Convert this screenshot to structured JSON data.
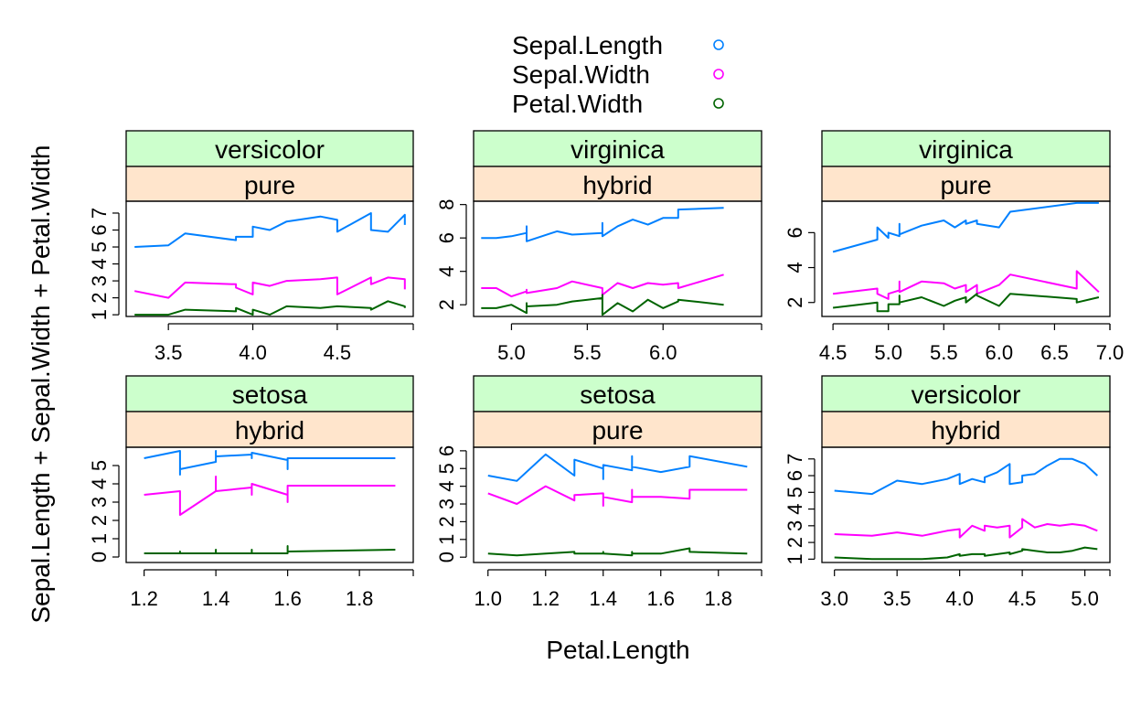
{
  "xlabel": "Petal.Length",
  "ylabel": "Sepal.Length + Sepal.Width + Petal.Width",
  "legend": {
    "placement": "top",
    "entries": [
      {
        "name": "Sepal.Length",
        "color": "#0080FF"
      },
      {
        "name": "Sepal.Width",
        "color": "#FF00FF"
      },
      {
        "name": "Petal.Width",
        "color": "#006400"
      }
    ]
  },
  "strip_colors": {
    "outer": "#CCFFCC",
    "inner": "#FFE5CC"
  },
  "chart_data": [
    {
      "type": "line",
      "species": "versicolor",
      "group": "pure",
      "xlim": [
        3.25,
        4.95
      ],
      "ylim": [
        0.9,
        7.7
      ],
      "xticks": [
        "3.5",
        "4.0",
        "4.5"
      ],
      "xtick_values": [
        3.5,
        4.0,
        4.5
      ],
      "yticks": [
        "1",
        "2",
        "3",
        "4",
        "5",
        "6",
        "7"
      ],
      "ytick_values": [
        1,
        2,
        3,
        4,
        5,
        6,
        7
      ],
      "x": [
        3.3,
        3.5,
        3.6,
        3.9,
        3.9,
        4.0,
        4.0,
        4.1,
        4.2,
        4.4,
        4.5,
        4.5,
        4.7,
        4.7,
        4.8,
        4.9,
        4.9
      ],
      "series": [
        {
          "name": "Sepal.Length",
          "values": [
            5.0,
            5.1,
            5.8,
            5.4,
            5.6,
            5.6,
            6.2,
            6.0,
            6.5,
            6.8,
            6.6,
            5.9,
            7.0,
            6.0,
            5.9,
            6.9,
            6.3
          ]
        },
        {
          "name": "Sepal.Width",
          "values": [
            2.4,
            2.0,
            2.9,
            2.8,
            2.6,
            2.2,
            2.9,
            2.7,
            3.0,
            3.1,
            3.2,
            2.2,
            3.2,
            2.8,
            3.2,
            3.1,
            2.5
          ]
        },
        {
          "name": "Petal.Width",
          "values": [
            1.0,
            1.0,
            1.3,
            1.2,
            1.4,
            1.0,
            1.3,
            1.0,
            1.5,
            1.4,
            1.5,
            1.5,
            1.4,
            1.3,
            1.8,
            1.5,
            1.4
          ]
        }
      ]
    },
    {
      "type": "line",
      "species": "virginica",
      "group": "hybrid",
      "xlim": [
        4.75,
        6.65
      ],
      "ylim": [
        1.3,
        8.2
      ],
      "xticks": [
        "5.0",
        "5.5",
        "6.0"
      ],
      "xtick_values": [
        5.0,
        5.5,
        6.0
      ],
      "yticks": [
        "2",
        "4",
        "6",
        "8"
      ],
      "ytick_values": [
        2,
        4,
        6,
        8
      ],
      "x": [
        4.8,
        4.9,
        5.0,
        5.1,
        5.1,
        5.1,
        5.3,
        5.4,
        5.6,
        5.6,
        5.6,
        5.7,
        5.8,
        5.9,
        6.0,
        6.1,
        6.1,
        6.4
      ],
      "series": [
        {
          "name": "Sepal.Length",
          "values": [
            6.0,
            6.0,
            6.1,
            6.3,
            6.7,
            5.8,
            6.4,
            6.2,
            6.3,
            6.9,
            6.1,
            6.7,
            7.1,
            6.8,
            7.2,
            7.2,
            7.7,
            7.8
          ]
        },
        {
          "name": "Sepal.Width",
          "values": [
            3.0,
            3.0,
            2.5,
            2.8,
            2.9,
            2.7,
            3.0,
            3.4,
            3.0,
            2.5,
            2.6,
            3.3,
            3.0,
            3.3,
            3.2,
            3.3,
            3.0,
            3.8
          ]
        },
        {
          "name": "Petal.Width",
          "values": [
            1.8,
            1.8,
            2.0,
            1.5,
            2.1,
            1.9,
            2.0,
            2.2,
            2.4,
            2.6,
            1.4,
            2.1,
            1.6,
            2.3,
            1.8,
            2.2,
            2.3,
            2.0
          ]
        }
      ]
    },
    {
      "type": "line",
      "species": "virginica",
      "group": "pure",
      "xlim": [
        4.4,
        7.0
      ],
      "ylim": [
        1.2,
        7.8
      ],
      "xticks": [
        "4.5",
        "5.0",
        "5.5",
        "6.0",
        "6.5",
        "7.0"
      ],
      "xtick_values": [
        4.5,
        5.0,
        5.5,
        6.0,
        6.5,
        7.0
      ],
      "yticks": [
        "2",
        "4",
        "6"
      ],
      "ytick_values": [
        2,
        4,
        6
      ],
      "x": [
        4.5,
        4.9,
        4.9,
        5.0,
        5.0,
        5.1,
        5.1,
        5.1,
        5.3,
        5.5,
        5.6,
        5.7,
        5.7,
        5.8,
        5.8,
        6.0,
        6.1,
        6.7,
        6.7,
        6.9
      ],
      "series": [
        {
          "name": "Sepal.Length",
          "values": [
            4.9,
            5.6,
            6.3,
            5.7,
            6.0,
            5.8,
            6.5,
            5.9,
            6.4,
            6.7,
            6.3,
            6.7,
            6.5,
            6.7,
            6.5,
            6.3,
            7.2,
            7.7,
            7.7,
            7.7
          ]
        },
        {
          "name": "Sepal.Width",
          "values": [
            2.5,
            2.8,
            2.5,
            2.2,
            2.5,
            2.7,
            3.2,
            2.6,
            3.2,
            3.1,
            2.8,
            3.0,
            2.6,
            3.0,
            2.5,
            3.0,
            3.6,
            2.8,
            3.8,
            2.6
          ]
        },
        {
          "name": "Petal.Width",
          "values": [
            1.7,
            2.0,
            1.5,
            1.5,
            1.9,
            1.9,
            2.4,
            2.0,
            2.3,
            1.8,
            2.1,
            2.3,
            2.0,
            2.5,
            2.4,
            1.8,
            2.5,
            2.2,
            2.0,
            2.3
          ]
        }
      ]
    },
    {
      "type": "line",
      "species": "setosa",
      "group": "hybrid",
      "xlim": [
        1.15,
        1.95
      ],
      "ylim": [
        -0.3,
        6.0
      ],
      "xticks": [
        "1.2",
        "1.4",
        "1.6",
        "1.8"
      ],
      "xtick_values": [
        1.2,
        1.4,
        1.6,
        1.8
      ],
      "yticks": [
        "0",
        "1",
        "2",
        "3",
        "4",
        "5"
      ],
      "ytick_values": [
        0,
        1,
        2,
        3,
        4,
        5
      ],
      "x": [
        1.2,
        1.3,
        1.3,
        1.3,
        1.4,
        1.4,
        1.4,
        1.5,
        1.5,
        1.5,
        1.6,
        1.6,
        1.6,
        1.9
      ],
      "series": [
        {
          "name": "Sepal.Length",
          "values": [
            5.4,
            5.8,
            4.5,
            4.8,
            5.2,
            5.8,
            5.5,
            5.6,
            5.4,
            5.7,
            5.3,
            4.8,
            5.4,
            5.4
          ]
        },
        {
          "name": "Sepal.Width",
          "values": [
            3.4,
            3.6,
            3.4,
            2.3,
            3.6,
            4.4,
            3.6,
            3.8,
            3.4,
            4.0,
            3.4,
            3.0,
            3.9,
            3.9
          ]
        },
        {
          "name": "Petal.Width",
          "values": [
            0.2,
            0.2,
            0.3,
            0.2,
            0.2,
            0.4,
            0.2,
            0.2,
            0.4,
            0.2,
            0.2,
            0.6,
            0.3,
            0.4
          ]
        }
      ]
    },
    {
      "type": "line",
      "species": "setosa",
      "group": "pure",
      "xlim": [
        0.95,
        1.95
      ],
      "ylim": [
        -0.3,
        6.2
      ],
      "xticks": [
        "1.0",
        "1.2",
        "1.4",
        "1.6",
        "1.8"
      ],
      "xtick_values": [
        1.0,
        1.2,
        1.4,
        1.6,
        1.8
      ],
      "yticks": [
        "0",
        "1",
        "2",
        "3",
        "4",
        "5",
        "6"
      ],
      "ytick_values": [
        0,
        1,
        2,
        3,
        4,
        5,
        6
      ],
      "x": [
        1.0,
        1.1,
        1.2,
        1.3,
        1.3,
        1.4,
        1.4,
        1.4,
        1.5,
        1.5,
        1.5,
        1.6,
        1.7,
        1.7,
        1.9
      ],
      "series": [
        {
          "name": "Sepal.Length",
          "values": [
            4.6,
            4.3,
            5.8,
            4.6,
            5.5,
            5.0,
            4.4,
            5.2,
            4.9,
            5.7,
            5.1,
            4.8,
            5.1,
            5.7,
            5.1
          ]
        },
        {
          "name": "Sepal.Width",
          "values": [
            3.6,
            3.0,
            4.0,
            3.2,
            3.5,
            3.6,
            2.9,
            3.4,
            3.1,
            3.8,
            3.4,
            3.4,
            3.3,
            3.8,
            3.8
          ]
        },
        {
          "name": "Petal.Width",
          "values": [
            0.2,
            0.1,
            0.2,
            0.3,
            0.2,
            0.2,
            0.3,
            0.2,
            0.1,
            0.3,
            0.2,
            0.2,
            0.5,
            0.3,
            0.2
          ]
        }
      ]
    },
    {
      "type": "line",
      "species": "versicolor",
      "group": "hybrid",
      "xlim": [
        2.9,
        5.2
      ],
      "ylim": [
        0.8,
        7.7
      ],
      "xticks": [
        "3.0",
        "3.5",
        "4.0",
        "4.5",
        "5.0"
      ],
      "xtick_values": [
        3.0,
        3.5,
        4.0,
        4.5,
        5.0
      ],
      "yticks": [
        "1",
        "2",
        "3",
        "4",
        "5",
        "6",
        "7"
      ],
      "ytick_values": [
        1,
        2,
        3,
        4,
        5,
        6,
        7
      ],
      "x": [
        3.0,
        3.3,
        3.5,
        3.7,
        3.9,
        4.0,
        4.0,
        4.1,
        4.2,
        4.2,
        4.3,
        4.4,
        4.4,
        4.5,
        4.5,
        4.6,
        4.7,
        4.8,
        4.9,
        5.0,
        5.1
      ],
      "series": [
        {
          "name": "Sepal.Length",
          "values": [
            5.1,
            4.9,
            5.7,
            5.5,
            5.8,
            6.1,
            5.5,
            5.8,
            5.6,
            5.9,
            6.2,
            6.7,
            5.5,
            5.6,
            6.0,
            6.1,
            6.6,
            7.0,
            7.0,
            6.7,
            6.0
          ]
        },
        {
          "name": "Sepal.Width",
          "values": [
            2.5,
            2.4,
            2.6,
            2.4,
            2.7,
            2.8,
            2.3,
            3.0,
            2.7,
            3.0,
            2.9,
            3.0,
            2.3,
            2.9,
            3.4,
            2.9,
            3.1,
            3.0,
            3.1,
            3.0,
            2.7
          ]
        },
        {
          "name": "Petal.Width",
          "values": [
            1.1,
            1.0,
            1.0,
            1.0,
            1.1,
            1.3,
            1.2,
            1.3,
            1.3,
            1.2,
            1.3,
            1.4,
            1.3,
            1.5,
            1.6,
            1.5,
            1.4,
            1.4,
            1.5,
            1.7,
            1.6
          ]
        }
      ]
    }
  ]
}
